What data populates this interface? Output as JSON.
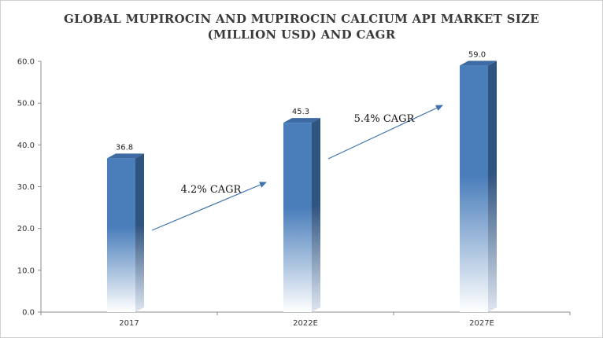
{
  "chart_data": {
    "type": "bar",
    "title_line1": "GLOBAL MUPIROCIN AND MUPIROCIN CALCIUM API MARKET SIZE",
    "title_line2": "(MILLION USD) AND CAGR",
    "categories": [
      "2017",
      "2022E",
      "2027E"
    ],
    "values": [
      36.8,
      45.3,
      59.0
    ],
    "value_labels": [
      "36.8",
      "45.3",
      "59.0"
    ],
    "ylim": [
      0,
      60
    ],
    "yticks": [
      "0.0",
      "10.0",
      "20.0",
      "30.0",
      "40.0",
      "50.0",
      "60.0"
    ],
    "annotations": [
      {
        "text": "4.2% CAGR",
        "from": "2017",
        "to": "2022E"
      },
      {
        "text": "5.4% CAGR",
        "from": "2022E",
        "to": "2027E"
      }
    ],
    "colors": {
      "bar_top": "#4a7ebb",
      "bar_side": "#2f5480",
      "bar_cap": "#3d6aa2",
      "arrow": "#3f72af"
    },
    "grid": false,
    "legend": "none"
  }
}
